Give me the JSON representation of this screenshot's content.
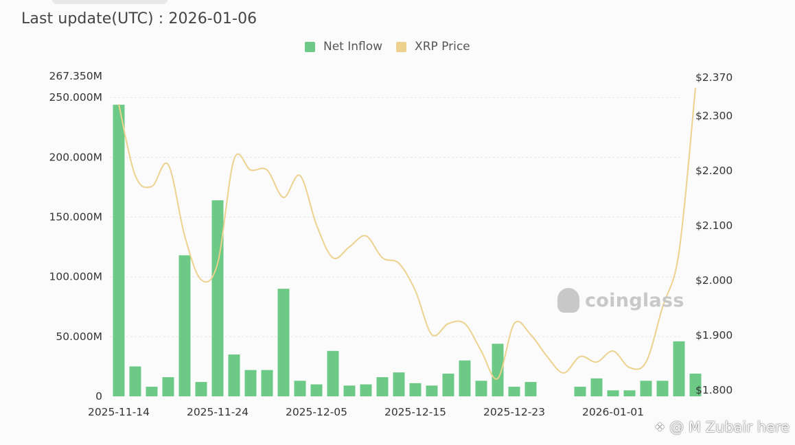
{
  "header": {
    "last_update": "Last update(UTC) : 2026-01-06"
  },
  "watermark": {
    "text": "coinglass"
  },
  "credit": {
    "text": "@ M Zubair here"
  },
  "colors": {
    "bar": "#6cc986",
    "line": "#ecd28e",
    "grid": "#e6e6e6"
  },
  "chart_data": {
    "type": "bar",
    "legend": [
      "Net Inflow",
      "XRP Price"
    ],
    "legend_position": "top-center",
    "grid": true,
    "x_tick_labels": [
      "2025-11-14",
      "2025-11-24",
      "2025-12-05",
      "2025-12-15",
      "2025-12-23",
      "2026-01-01"
    ],
    "y_left": {
      "ticks": [
        "0",
        "50.000M",
        "100.000M",
        "150.000M",
        "200.000M",
        "250.000M",
        "267.350M"
      ],
      "range": [
        0,
        267.35
      ],
      "unit": "M"
    },
    "y_right": {
      "ticks": [
        "$1.800",
        "$1.900",
        "$2.000",
        "$2.100",
        "$2.200",
        "$2.300",
        "$2.370"
      ],
      "range": [
        1.8,
        2.37
      ]
    },
    "series": [
      {
        "name": "Net Inflow",
        "type": "bar",
        "values": [
          244,
          25,
          8,
          16,
          118,
          12,
          164,
          35,
          22,
          22,
          90,
          13,
          10,
          38,
          9,
          10,
          16,
          20,
          11,
          9,
          19,
          30,
          13,
          44,
          8,
          12,
          0,
          0,
          8,
          15,
          5,
          5,
          13,
          13,
          46,
          19
        ]
      },
      {
        "name": "XRP Price",
        "type": "line",
        "values": [
          2.32,
          2.19,
          2.17,
          2.21,
          2.08,
          2.0,
          2.03,
          2.22,
          2.2,
          2.2,
          2.15,
          2.19,
          2.1,
          2.04,
          2.06,
          2.08,
          2.04,
          2.03,
          1.98,
          1.9,
          1.92,
          1.92,
          1.87,
          1.82,
          1.92,
          1.9,
          1.86,
          1.83,
          1.86,
          1.85,
          1.87,
          1.84,
          1.85,
          1.95,
          2.05,
          2.35
        ]
      }
    ]
  }
}
